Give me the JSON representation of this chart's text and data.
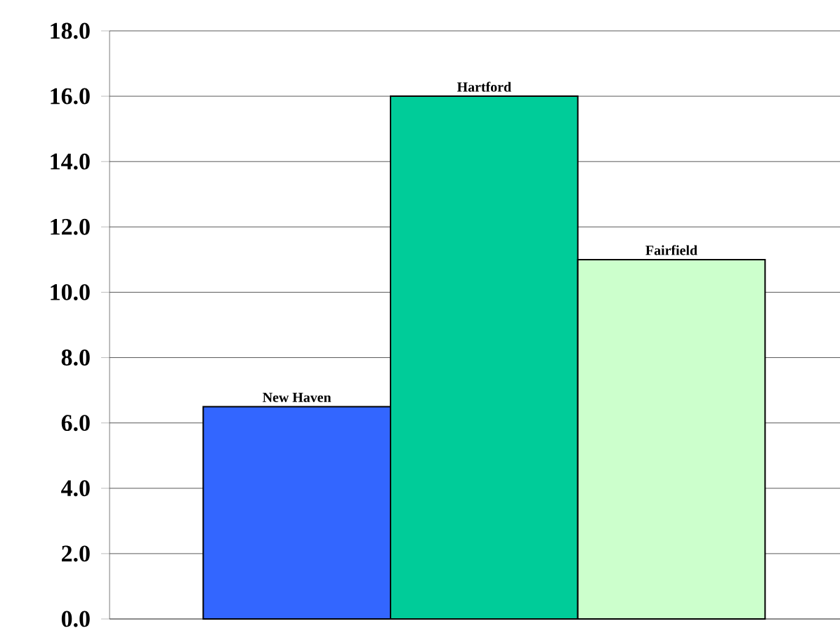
{
  "chart_data": {
    "type": "bar",
    "categories": [
      "New Haven",
      "Hartford",
      "Fairfield"
    ],
    "values": [
      6.5,
      16.0,
      11.0
    ],
    "colors": [
      "#3366ff",
      "#00cc99",
      "#ccffcc"
    ],
    "ylim": [
      0,
      18
    ],
    "yticks": [
      {
        "value": 0,
        "label": "0.0"
      },
      {
        "value": 2,
        "label": "2.0"
      },
      {
        "value": 4,
        "label": "4.0"
      },
      {
        "value": 6,
        "label": "6.0"
      },
      {
        "value": 8,
        "label": "8.0"
      },
      {
        "value": 10,
        "label": "10.0"
      },
      {
        "value": 12,
        "label": "12.0"
      },
      {
        "value": 14,
        "label": "14.0"
      },
      {
        "value": 16,
        "label": "16.0"
      },
      {
        "value": 18,
        "label": "18.0"
      }
    ],
    "grid": "y"
  }
}
